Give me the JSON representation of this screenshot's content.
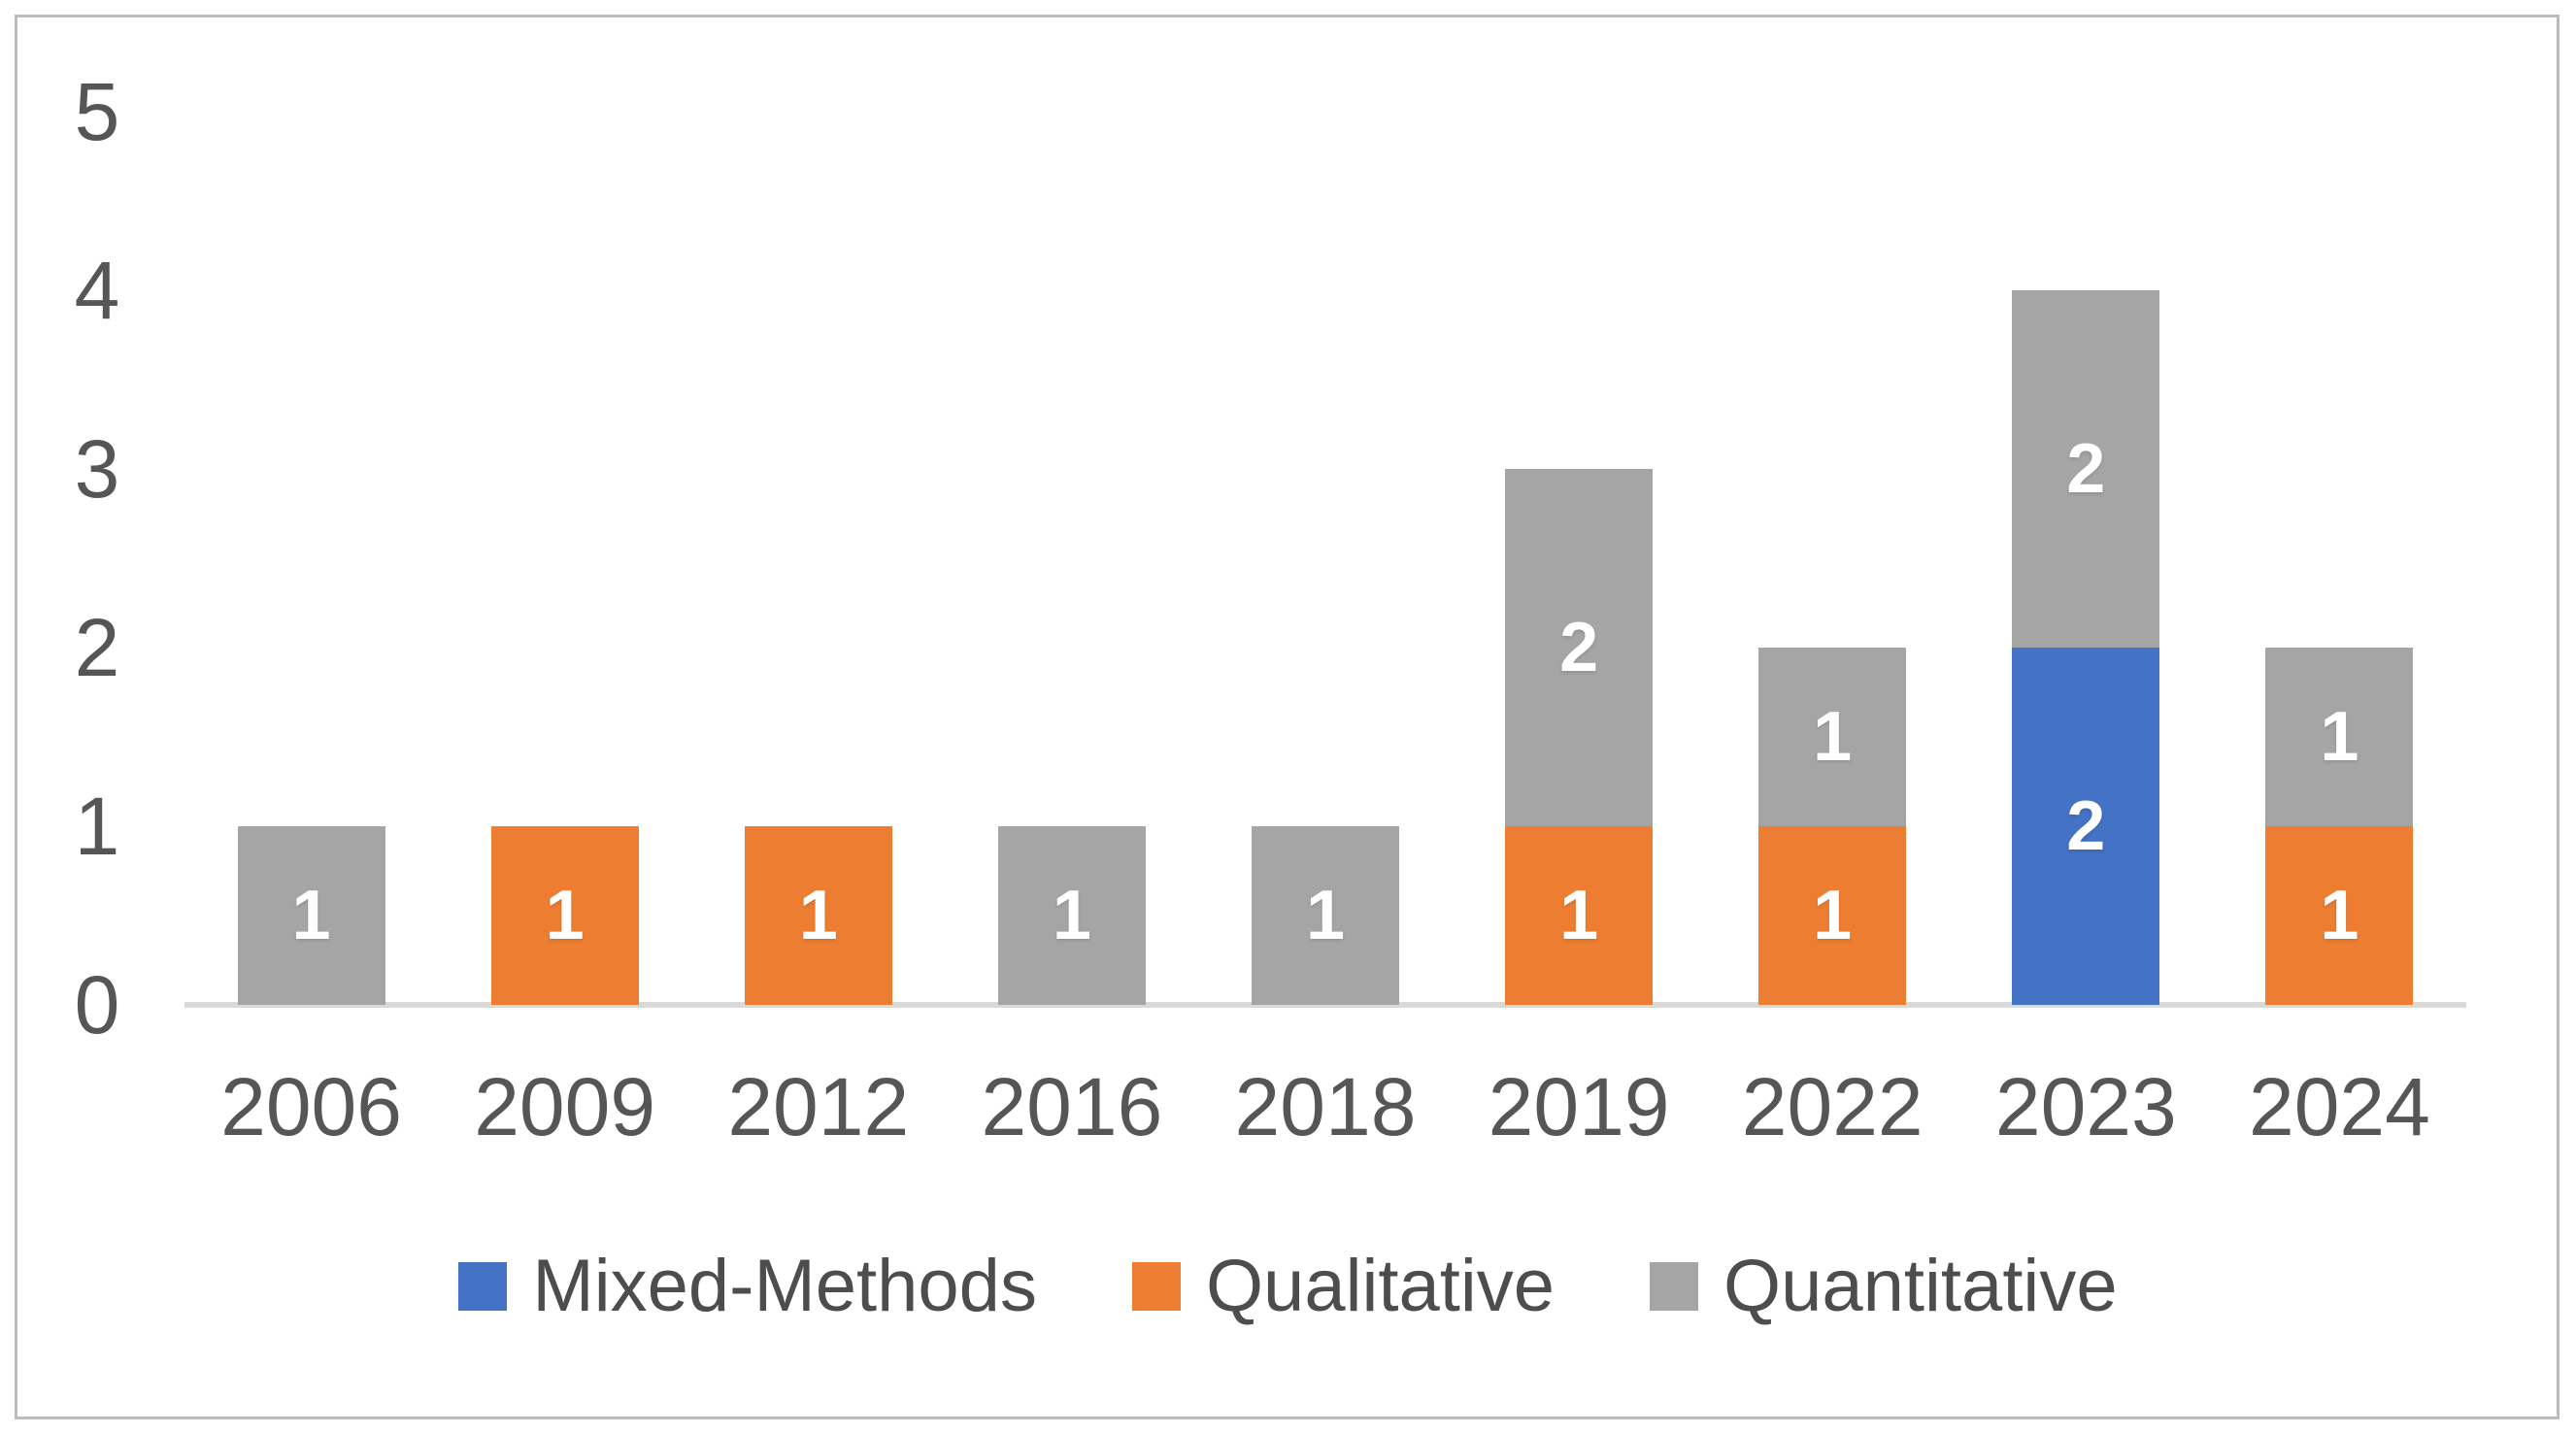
{
  "chart_data": {
    "type": "bar",
    "stacked": true,
    "title": "",
    "xlabel": "",
    "ylabel": "",
    "categories": [
      "2006",
      "2009",
      "2012",
      "2016",
      "2018",
      "2019",
      "2022",
      "2023",
      "2024"
    ],
    "series": [
      {
        "name": "Mixed-Methods",
        "color": "#4472C4",
        "values": [
          0,
          0,
          0,
          0,
          0,
          0,
          0,
          2,
          0
        ]
      },
      {
        "name": "Qualitative",
        "color": "#ED7D31",
        "values": [
          0,
          1,
          1,
          0,
          0,
          1,
          1,
          0,
          1
        ]
      },
      {
        "name": "Quantitative",
        "color": "#A5A5A5",
        "values": [
          1,
          0,
          0,
          1,
          1,
          2,
          1,
          2,
          1
        ]
      }
    ],
    "totals": [
      1,
      1,
      1,
      1,
      1,
      3,
      2,
      4,
      2
    ],
    "y_axis": {
      "min": 0,
      "max": 5,
      "tick_step": 1,
      "tick_labels": [
        "0",
        "1",
        "2",
        "3",
        "4",
        "5"
      ]
    },
    "data_labels": {
      "shown": true,
      "color": "#ffffff",
      "style": "bold",
      "placement": "center of each segment"
    },
    "legend": {
      "position": "bottom-center",
      "entries": [
        "Mixed-Methods",
        "Qualitative",
        "Quantitative"
      ]
    },
    "gridlines": false,
    "colors": {
      "axis_line": "#d9d9d9",
      "tick_text": "#565656",
      "legend_text": "#4d4d4d",
      "frame_border": "#b9bdc1",
      "background": "#ffffff"
    }
  }
}
